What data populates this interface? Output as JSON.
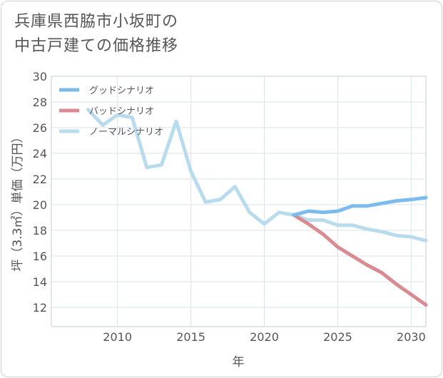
{
  "title_line1": "兵庫県西脇市小坂町の",
  "title_line2": "中古戸建ての価格推移",
  "chart_data": {
    "type": "line",
    "xlabel": "年",
    "ylabel": "坪（3.3㎡）単価（万円）",
    "xlim": [
      2005.5,
      2031
    ],
    "ylim": [
      10.5,
      30
    ],
    "xticks": [
      2010,
      2015,
      2020,
      2025,
      2030
    ],
    "yticks": [
      12,
      14,
      16,
      18,
      20,
      22,
      24,
      26,
      28,
      30
    ],
    "legend_position": "top-left",
    "series": [
      {
        "name": "グッドシナリオ",
        "color": "#7bbcec",
        "x": [
          2022,
          2023,
          2024,
          2025,
          2026,
          2027,
          2028,
          2029,
          2030,
          2031
        ],
        "y": [
          19.2,
          19.5,
          19.4,
          19.5,
          19.9,
          19.9,
          20.1,
          20.3,
          20.4,
          20.55
        ]
      },
      {
        "name": "バッドシナリオ",
        "color": "#da8b92",
        "x": [
          2022,
          2023,
          2024,
          2025,
          2026,
          2027,
          2028,
          2029,
          2030,
          2031
        ],
        "y": [
          19.2,
          18.5,
          17.7,
          16.7,
          16.0,
          15.3,
          14.7,
          13.8,
          13.0,
          12.2
        ]
      },
      {
        "name": "ノーマルシナリオ",
        "color": "#b8dcee",
        "x": [
          2008,
          2009,
          2010,
          2011,
          2012,
          2013,
          2014,
          2015,
          2016,
          2017,
          2018,
          2019,
          2020,
          2021,
          2022,
          2023,
          2024,
          2025,
          2026,
          2027,
          2028,
          2029,
          2030,
          2031
        ],
        "y": [
          27.4,
          26.2,
          27.0,
          26.8,
          22.9,
          23.1,
          26.5,
          22.6,
          20.2,
          20.4,
          21.4,
          19.4,
          18.5,
          19.4,
          19.2,
          18.8,
          18.8,
          18.4,
          18.4,
          18.1,
          17.9,
          17.6,
          17.5,
          17.2
        ]
      }
    ]
  }
}
